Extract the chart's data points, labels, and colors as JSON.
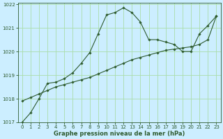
{
  "title": "Graphe pression niveau de la mer (hPa)",
  "x": [
    0,
    1,
    2,
    3,
    4,
    5,
    6,
    7,
    8,
    9,
    10,
    11,
    12,
    13,
    14,
    15,
    16,
    17,
    18,
    19,
    20,
    21,
    22,
    23
  ],
  "line1": [
    1017.0,
    1017.4,
    1018.0,
    1018.65,
    1018.7,
    1018.85,
    1019.1,
    1019.5,
    1019.95,
    1020.75,
    1021.55,
    1021.65,
    1021.85,
    1021.65,
    1021.25,
    1020.5,
    1020.5,
    1020.4,
    1020.3,
    1020.0,
    1020.0,
    1020.75,
    1021.1,
    1021.5
  ],
  "line2": [
    1017.9,
    1018.05,
    1018.2,
    1018.35,
    1018.5,
    1018.6,
    1018.7,
    1018.8,
    1018.9,
    1019.05,
    1019.2,
    1019.35,
    1019.5,
    1019.65,
    1019.75,
    1019.85,
    1019.95,
    1020.05,
    1020.1,
    1020.15,
    1020.2,
    1020.3,
    1020.5,
    1021.5
  ],
  "line_color": "#2d5a2d",
  "bg_color": "#cceeff",
  "grid_color": "#aaddaa",
  "ylim": [
    1017.0,
    1022.0
  ],
  "xlim": [
    -0.5,
    23.5
  ],
  "yticks": [
    1017,
    1018,
    1019,
    1020,
    1021,
    1022
  ],
  "xticks": [
    0,
    1,
    2,
    3,
    4,
    5,
    6,
    7,
    8,
    9,
    10,
    11,
    12,
    13,
    14,
    15,
    16,
    17,
    18,
    19,
    20,
    21,
    22,
    23
  ],
  "tick_fontsize": 5.0,
  "label_fontsize": 6.0,
  "marker": "D",
  "marker_size": 1.8
}
